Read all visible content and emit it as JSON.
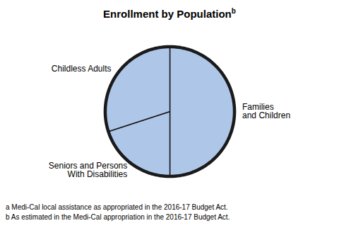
{
  "chart_data": {
    "type": "pie",
    "title": "Enrollment by Population",
    "title_superscript": "b",
    "categories": [
      "Families\nand Children",
      "Seniors and Persons\nWith Disabilities",
      "Childless Adults"
    ],
    "values": [
      50,
      20,
      30
    ],
    "colors": [
      "#aec6e8",
      "#aec6e8",
      "#aec6e8"
    ],
    "annotations": [
      "a Medi-Cal local assistance as appropriated in the 2016-17 Budget Act.",
      "b As estimated in the Medi-Cal appropriation in the 2016-17 Budget Act."
    ]
  }
}
